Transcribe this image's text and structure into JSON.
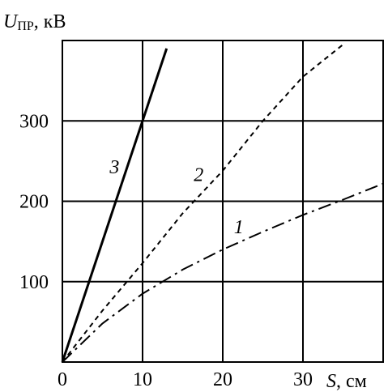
{
  "chart_data": {
    "type": "line",
    "title": "",
    "xlabel": {
      "symbol": "S",
      "unit": ", см"
    },
    "ylabel": {
      "symbol": "U",
      "subscript": "ПР",
      "unit": ", кВ"
    },
    "xlim": [
      0,
      40
    ],
    "ylim": [
      0,
      400
    ],
    "xticks": [
      0,
      10,
      20,
      30
    ],
    "yticks": [
      100,
      200,
      300
    ],
    "grid": true,
    "series": [
      {
        "name": "1",
        "dash": "dash-dot",
        "x": [
          0,
          5,
          10,
          15,
          20,
          25,
          30,
          35,
          40
        ],
        "y": [
          0,
          48,
          85,
          115,
          140,
          162,
          183,
          202,
          222
        ]
      },
      {
        "name": "2",
        "dash": "dashed",
        "x": [
          0,
          5,
          10,
          15,
          20,
          25,
          30,
          35
        ],
        "y": [
          0,
          64,
          123,
          185,
          238,
          300,
          355,
          395
        ]
      },
      {
        "name": "3",
        "dash": "solid",
        "x": [
          0,
          13
        ],
        "y": [
          0,
          390
        ]
      }
    ],
    "curve_labels": [
      {
        "series": "1",
        "x": 22,
        "y": 160
      },
      {
        "series": "2",
        "x": 17,
        "y": 225
      },
      {
        "series": "3",
        "x": 6.5,
        "y": 235
      }
    ]
  }
}
